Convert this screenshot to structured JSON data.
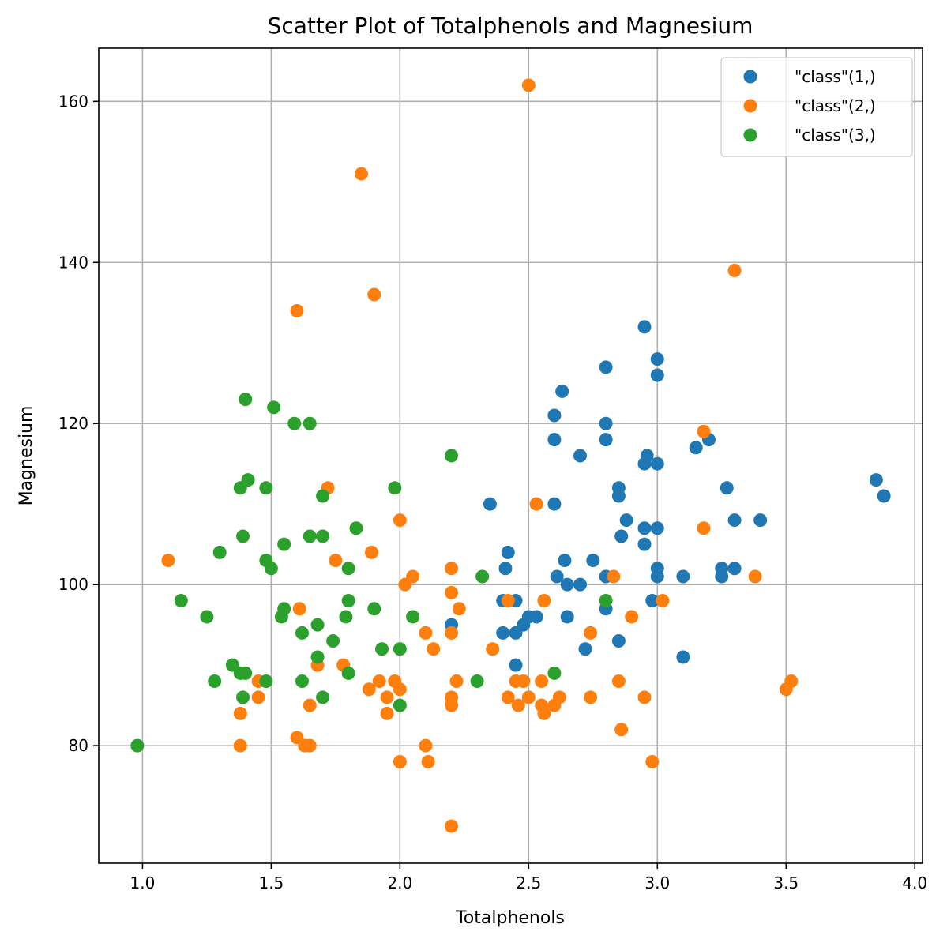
{
  "chart_data": {
    "type": "scatter",
    "title": "Scatter Plot of Totalphenols and Magnesium",
    "xlabel": "Totalphenols",
    "ylabel": "Magnesium",
    "xlim": [
      0.83,
      4.03
    ],
    "ylim": [
      65.4,
      166.6
    ],
    "xticks": [
      1.0,
      1.5,
      2.0,
      2.5,
      3.0,
      3.5,
      4.0
    ],
    "xtick_labels": [
      "1.0",
      "1.5",
      "2.0",
      "2.5",
      "3.0",
      "3.5",
      "4.0"
    ],
    "yticks": [
      80,
      100,
      120,
      140,
      160
    ],
    "ytick_labels": [
      "80",
      "100",
      "120",
      "140",
      "160"
    ],
    "grid": true,
    "legend_position": "top-right",
    "series": [
      {
        "name": "\"class\"(1,)",
        "color": "#1f77b4",
        "points": [
          [
            2.35,
            110
          ],
          [
            2.4,
            94
          ],
          [
            2.4,
            98
          ],
          [
            2.41,
            102
          ],
          [
            2.42,
            104
          ],
          [
            2.45,
            90
          ],
          [
            2.45,
            94
          ],
          [
            2.45,
            98
          ],
          [
            2.48,
            95
          ],
          [
            2.5,
            96
          ],
          [
            2.53,
            96
          ],
          [
            2.6,
            121
          ],
          [
            2.6,
            118
          ],
          [
            2.6,
            110
          ],
          [
            2.61,
            101
          ],
          [
            2.63,
            124
          ],
          [
            2.64,
            103
          ],
          [
            2.65,
            96
          ],
          [
            2.65,
            100
          ],
          [
            2.7,
            116
          ],
          [
            2.7,
            100
          ],
          [
            2.72,
            92
          ],
          [
            2.75,
            103
          ],
          [
            2.8,
            127
          ],
          [
            2.8,
            120
          ],
          [
            2.8,
            118
          ],
          [
            2.8,
            101
          ],
          [
            2.8,
            97
          ],
          [
            2.85,
            112
          ],
          [
            2.85,
            111
          ],
          [
            2.85,
            93
          ],
          [
            2.86,
            106
          ],
          [
            2.88,
            108
          ],
          [
            2.95,
            132
          ],
          [
            2.95,
            115
          ],
          [
            2.95,
            107
          ],
          [
            2.95,
            105
          ],
          [
            2.96,
            116
          ],
          [
            2.98,
            98
          ],
          [
            3.0,
            128
          ],
          [
            3.0,
            126
          ],
          [
            3.0,
            115
          ],
          [
            3.0,
            107
          ],
          [
            3.0,
            102
          ],
          [
            3.0,
            101
          ],
          [
            3.1,
            101
          ],
          [
            3.1,
            91
          ],
          [
            3.15,
            117
          ],
          [
            3.2,
            118
          ],
          [
            3.25,
            102
          ],
          [
            3.25,
            101
          ],
          [
            3.27,
            112
          ],
          [
            3.3,
            108
          ],
          [
            3.3,
            102
          ],
          [
            3.4,
            108
          ],
          [
            3.85,
            113
          ],
          [
            3.88,
            111
          ],
          [
            2.2,
            95
          ]
        ]
      },
      {
        "name": "\"class\"(2,)",
        "color": "#ff7f0e",
        "points": [
          [
            2.5,
            162
          ],
          [
            1.85,
            151
          ],
          [
            3.3,
            139
          ],
          [
            1.9,
            136
          ],
          [
            1.6,
            134
          ],
          [
            3.18,
            119
          ],
          [
            1.72,
            112
          ],
          [
            2.53,
            110
          ],
          [
            2.0,
            108
          ],
          [
            3.18,
            107
          ],
          [
            1.1,
            103
          ],
          [
            1.75,
            103
          ],
          [
            1.89,
            104
          ],
          [
            2.2,
            102
          ],
          [
            2.05,
            101
          ],
          [
            2.83,
            101
          ],
          [
            3.38,
            101
          ],
          [
            2.02,
            100
          ],
          [
            2.2,
            99
          ],
          [
            2.42,
            98
          ],
          [
            2.56,
            98
          ],
          [
            3.02,
            98
          ],
          [
            1.61,
            97
          ],
          [
            2.23,
            97
          ],
          [
            2.9,
            96
          ],
          [
            2.1,
            94
          ],
          [
            2.2,
            94
          ],
          [
            2.74,
            94
          ],
          [
            2.13,
            92
          ],
          [
            2.36,
            92
          ],
          [
            1.68,
            90
          ],
          [
            1.78,
            90
          ],
          [
            1.45,
            88
          ],
          [
            1.92,
            88
          ],
          [
            1.98,
            88
          ],
          [
            2.22,
            88
          ],
          [
            2.45,
            88
          ],
          [
            2.48,
            88
          ],
          [
            2.55,
            88
          ],
          [
            2.85,
            88
          ],
          [
            3.52,
            88
          ],
          [
            1.88,
            87
          ],
          [
            2.0,
            87
          ],
          [
            3.5,
            87
          ],
          [
            1.45,
            86
          ],
          [
            1.95,
            86
          ],
          [
            2.2,
            86
          ],
          [
            2.42,
            86
          ],
          [
            2.5,
            86
          ],
          [
            2.62,
            86
          ],
          [
            2.74,
            86
          ],
          [
            2.95,
            86
          ],
          [
            1.65,
            85
          ],
          [
            2.2,
            85
          ],
          [
            2.46,
            85
          ],
          [
            2.55,
            85
          ],
          [
            2.6,
            85
          ],
          [
            1.38,
            84
          ],
          [
            1.95,
            84
          ],
          [
            2.56,
            84
          ],
          [
            2.86,
            82
          ],
          [
            1.6,
            81
          ],
          [
            1.38,
            80
          ],
          [
            1.63,
            80
          ],
          [
            1.65,
            80
          ],
          [
            2.1,
            80
          ],
          [
            2.0,
            78
          ],
          [
            2.11,
            78
          ],
          [
            2.98,
            78
          ],
          [
            2.2,
            70
          ]
        ]
      },
      {
        "name": "\"class\"(3,)",
        "color": "#2ca02c",
        "points": [
          [
            1.4,
            123
          ],
          [
            1.51,
            122
          ],
          [
            1.59,
            120
          ],
          [
            1.65,
            120
          ],
          [
            2.2,
            116
          ],
          [
            1.41,
            113
          ],
          [
            1.38,
            112
          ],
          [
            1.48,
            112
          ],
          [
            1.98,
            112
          ],
          [
            1.7,
            111
          ],
          [
            1.83,
            107
          ],
          [
            1.39,
            106
          ],
          [
            1.65,
            106
          ],
          [
            1.7,
            106
          ],
          [
            1.55,
            105
          ],
          [
            1.3,
            104
          ],
          [
            1.48,
            103
          ],
          [
            1.5,
            102
          ],
          [
            1.8,
            102
          ],
          [
            2.32,
            101
          ],
          [
            1.15,
            98
          ],
          [
            1.8,
            98
          ],
          [
            2.8,
            98
          ],
          [
            1.55,
            97
          ],
          [
            1.9,
            97
          ],
          [
            1.25,
            96
          ],
          [
            1.54,
            96
          ],
          [
            1.79,
            96
          ],
          [
            2.05,
            96
          ],
          [
            1.68,
            95
          ],
          [
            1.62,
            94
          ],
          [
            1.74,
            93
          ],
          [
            1.93,
            92
          ],
          [
            2.0,
            92
          ],
          [
            1.68,
            91
          ],
          [
            1.35,
            90
          ],
          [
            1.38,
            89
          ],
          [
            1.4,
            89
          ],
          [
            1.8,
            89
          ],
          [
            2.6,
            89
          ],
          [
            1.28,
            88
          ],
          [
            1.48,
            88
          ],
          [
            1.62,
            88
          ],
          [
            2.3,
            88
          ],
          [
            1.39,
            86
          ],
          [
            1.7,
            86
          ],
          [
            2.0,
            85
          ],
          [
            0.98,
            80
          ]
        ]
      }
    ]
  }
}
